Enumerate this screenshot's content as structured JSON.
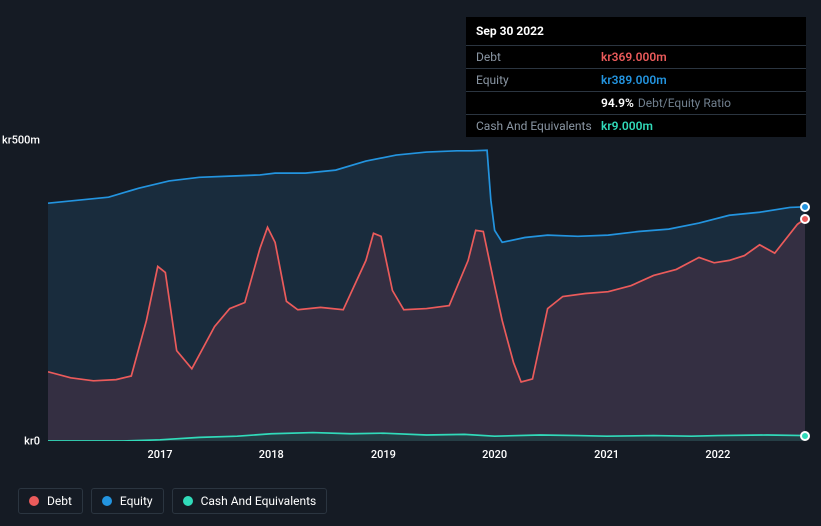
{
  "tooltip": {
    "date": "Sep 30 2022",
    "rows": [
      {
        "label": "Debt",
        "value": "kr369.000m",
        "color": "#eb5b5b"
      },
      {
        "label": "Equity",
        "value": "kr389.000m",
        "color": "#2394df"
      },
      {
        "label": "",
        "value": "94.9%",
        "subtext": "Debt/Equity Ratio",
        "color": "#ffffff"
      },
      {
        "label": "Cash And Equivalents",
        "value": "kr9.000m",
        "color": "#31dbba"
      }
    ]
  },
  "chart": {
    "type": "area",
    "background_color": "#151b24",
    "plot_bg_top": "#1b232e",
    "plot_bg_bottom": "#151b24",
    "ylim": [
      0,
      500
    ],
    "yticks": [
      {
        "v": 500,
        "label": "kr500m"
      },
      {
        "v": 0,
        "label": "kr0"
      }
    ],
    "xcategories": [
      "2017",
      "2018",
      "2019",
      "2020",
      "2021",
      "2022"
    ],
    "xtick_positions": [
      0.148,
      0.295,
      0.443,
      0.59,
      0.738,
      0.885
    ],
    "series": {
      "equity": {
        "name": "Equity",
        "color": "#2394df",
        "fill": "#1e3a52",
        "fill_opacity": 0.55,
        "data": [
          [
            0.0,
            395
          ],
          [
            0.04,
            400
          ],
          [
            0.08,
            405
          ],
          [
            0.12,
            420
          ],
          [
            0.16,
            432
          ],
          [
            0.2,
            438
          ],
          [
            0.24,
            440
          ],
          [
            0.28,
            442
          ],
          [
            0.3,
            445
          ],
          [
            0.34,
            445
          ],
          [
            0.38,
            450
          ],
          [
            0.42,
            465
          ],
          [
            0.46,
            475
          ],
          [
            0.5,
            480
          ],
          [
            0.54,
            482
          ],
          [
            0.56,
            482
          ],
          [
            0.58,
            483
          ],
          [
            0.585,
            400
          ],
          [
            0.59,
            350
          ],
          [
            0.6,
            330
          ],
          [
            0.63,
            338
          ],
          [
            0.66,
            342
          ],
          [
            0.7,
            340
          ],
          [
            0.74,
            342
          ],
          [
            0.78,
            348
          ],
          [
            0.82,
            352
          ],
          [
            0.86,
            362
          ],
          [
            0.9,
            375
          ],
          [
            0.94,
            380
          ],
          [
            0.98,
            388
          ],
          [
            1.0,
            389
          ]
        ]
      },
      "debt": {
        "name": "Debt",
        "color": "#eb5b5b",
        "fill": "#5c344c",
        "fill_opacity": 0.4,
        "data": [
          [
            0.0,
            115
          ],
          [
            0.03,
            105
          ],
          [
            0.06,
            100
          ],
          [
            0.09,
            102
          ],
          [
            0.11,
            108
          ],
          [
            0.13,
            200
          ],
          [
            0.145,
            290
          ],
          [
            0.155,
            280
          ],
          [
            0.17,
            150
          ],
          [
            0.19,
            120
          ],
          [
            0.22,
            190
          ],
          [
            0.24,
            220
          ],
          [
            0.26,
            230
          ],
          [
            0.28,
            320
          ],
          [
            0.29,
            355
          ],
          [
            0.3,
            330
          ],
          [
            0.315,
            232
          ],
          [
            0.33,
            218
          ],
          [
            0.36,
            222
          ],
          [
            0.39,
            218
          ],
          [
            0.42,
            300
          ],
          [
            0.43,
            345
          ],
          [
            0.44,
            340
          ],
          [
            0.455,
            250
          ],
          [
            0.47,
            218
          ],
          [
            0.5,
            220
          ],
          [
            0.53,
            225
          ],
          [
            0.555,
            300
          ],
          [
            0.565,
            350
          ],
          [
            0.575,
            348
          ],
          [
            0.59,
            258
          ],
          [
            0.6,
            200
          ],
          [
            0.615,
            130
          ],
          [
            0.625,
            98
          ],
          [
            0.64,
            103
          ],
          [
            0.66,
            220
          ],
          [
            0.68,
            240
          ],
          [
            0.71,
            245
          ],
          [
            0.74,
            248
          ],
          [
            0.77,
            258
          ],
          [
            0.8,
            275
          ],
          [
            0.83,
            285
          ],
          [
            0.86,
            305
          ],
          [
            0.88,
            296
          ],
          [
            0.9,
            300
          ],
          [
            0.92,
            308
          ],
          [
            0.94,
            326
          ],
          [
            0.96,
            312
          ],
          [
            0.99,
            360
          ],
          [
            1.0,
            369
          ]
        ]
      },
      "cash": {
        "name": "Cash And Equivalents",
        "color": "#31dbba",
        "fill": "#1d4a48",
        "fill_opacity": 0.6,
        "data": [
          [
            0.0,
            0
          ],
          [
            0.1,
            0
          ],
          [
            0.148,
            2
          ],
          [
            0.2,
            6
          ],
          [
            0.25,
            8
          ],
          [
            0.295,
            12
          ],
          [
            0.35,
            14
          ],
          [
            0.4,
            12
          ],
          [
            0.443,
            13
          ],
          [
            0.5,
            10
          ],
          [
            0.55,
            11
          ],
          [
            0.59,
            8
          ],
          [
            0.65,
            10
          ],
          [
            0.7,
            9
          ],
          [
            0.738,
            8
          ],
          [
            0.8,
            9
          ],
          [
            0.85,
            8
          ],
          [
            0.885,
            9
          ],
          [
            0.95,
            10
          ],
          [
            1.0,
            9
          ]
        ]
      }
    },
    "end_markers": [
      {
        "series": "equity",
        "y": 389,
        "color": "#2394df"
      },
      {
        "series": "debt",
        "y": 369,
        "color": "#eb5b5b"
      },
      {
        "series": "cash",
        "y": 9,
        "color": "#31dbba"
      }
    ],
    "line_width": 1.7,
    "legend": [
      {
        "key": "debt",
        "label": "Debt",
        "color": "#eb5b5b"
      },
      {
        "key": "equity",
        "label": "Equity",
        "color": "#2394df"
      },
      {
        "key": "cash",
        "label": "Cash And Equivalents",
        "color": "#31dbba"
      }
    ]
  }
}
